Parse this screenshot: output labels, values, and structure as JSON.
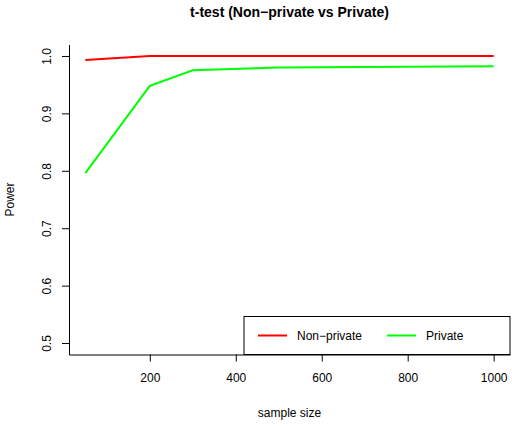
{
  "chart_data": {
    "type": "line",
    "title": "t-test (Non−private vs Private)",
    "x_label": "sample size",
    "y_label": "Power",
    "x": [
      50,
      200,
      300,
      500,
      1000
    ],
    "series": [
      {
        "name": "Non−private",
        "color": "#ff0000",
        "values": [
          0.993,
          1.0,
          1.0,
          1.0,
          1.0
        ]
      },
      {
        "name": "Private",
        "color": "#00ff00",
        "values": [
          0.796,
          0.948,
          0.975,
          0.98,
          0.982
        ]
      }
    ],
    "xlim": [
      12,
      1038
    ],
    "xticks": [
      200,
      400,
      600,
      800,
      1000
    ],
    "ylim": [
      0.48,
      1.02
    ],
    "yticks": [
      0.5,
      0.6,
      0.7,
      0.8,
      0.9,
      {
        "value": 1,
        "label": "1.0"
      }
    ],
    "legend": "bottomright",
    "grid": false
  }
}
